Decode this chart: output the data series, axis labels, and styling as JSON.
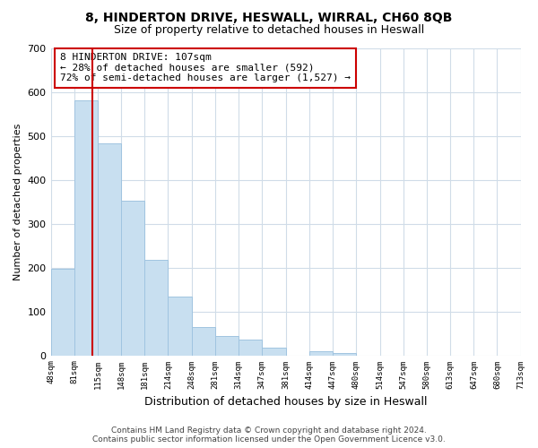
{
  "title": "8, HINDERTON DRIVE, HESWALL, WIRRAL, CH60 8QB",
  "subtitle": "Size of property relative to detached houses in Heswall",
  "xlabel": "Distribution of detached houses by size in Heswall",
  "ylabel": "Number of detached properties",
  "footer_line1": "Contains HM Land Registry data © Crown copyright and database right 2024.",
  "footer_line2": "Contains public sector information licensed under the Open Government Licence v3.0.",
  "bin_edges": [
    48,
    81,
    115,
    148,
    181,
    214,
    248,
    281,
    314,
    347,
    381,
    414,
    447,
    480,
    514,
    547,
    580,
    613,
    647,
    680,
    713
  ],
  "bar_heights": [
    197,
    581,
    484,
    353,
    218,
    133,
    64,
    45,
    35,
    17,
    0,
    10,
    5,
    0,
    0,
    0,
    0,
    0,
    0,
    0
  ],
  "bar_color": "#c8dff0",
  "bar_edge_color": "#a0c4e0",
  "property_line_x": 107,
  "property_line_color": "#cc0000",
  "annotation_line1": "8 HINDERTON DRIVE: 107sqm",
  "annotation_line2": "← 28% of detached houses are smaller (592)",
  "annotation_line3": "72% of semi-detached houses are larger (1,527) →",
  "ylim": [
    0,
    700
  ],
  "yticks": [
    0,
    100,
    200,
    300,
    400,
    500,
    600,
    700
  ],
  "tick_labels": [
    "48sqm",
    "81sqm",
    "115sqm",
    "148sqm",
    "181sqm",
    "214sqm",
    "248sqm",
    "281sqm",
    "314sqm",
    "347sqm",
    "381sqm",
    "414sqm",
    "447sqm",
    "480sqm",
    "514sqm",
    "547sqm",
    "580sqm",
    "613sqm",
    "647sqm",
    "680sqm",
    "713sqm"
  ],
  "background_color": "#ffffff",
  "grid_color": "#d0dce8",
  "title_fontsize": 10,
  "subtitle_fontsize": 9,
  "annotation_fontsize": 8,
  "footer_fontsize": 6.5
}
